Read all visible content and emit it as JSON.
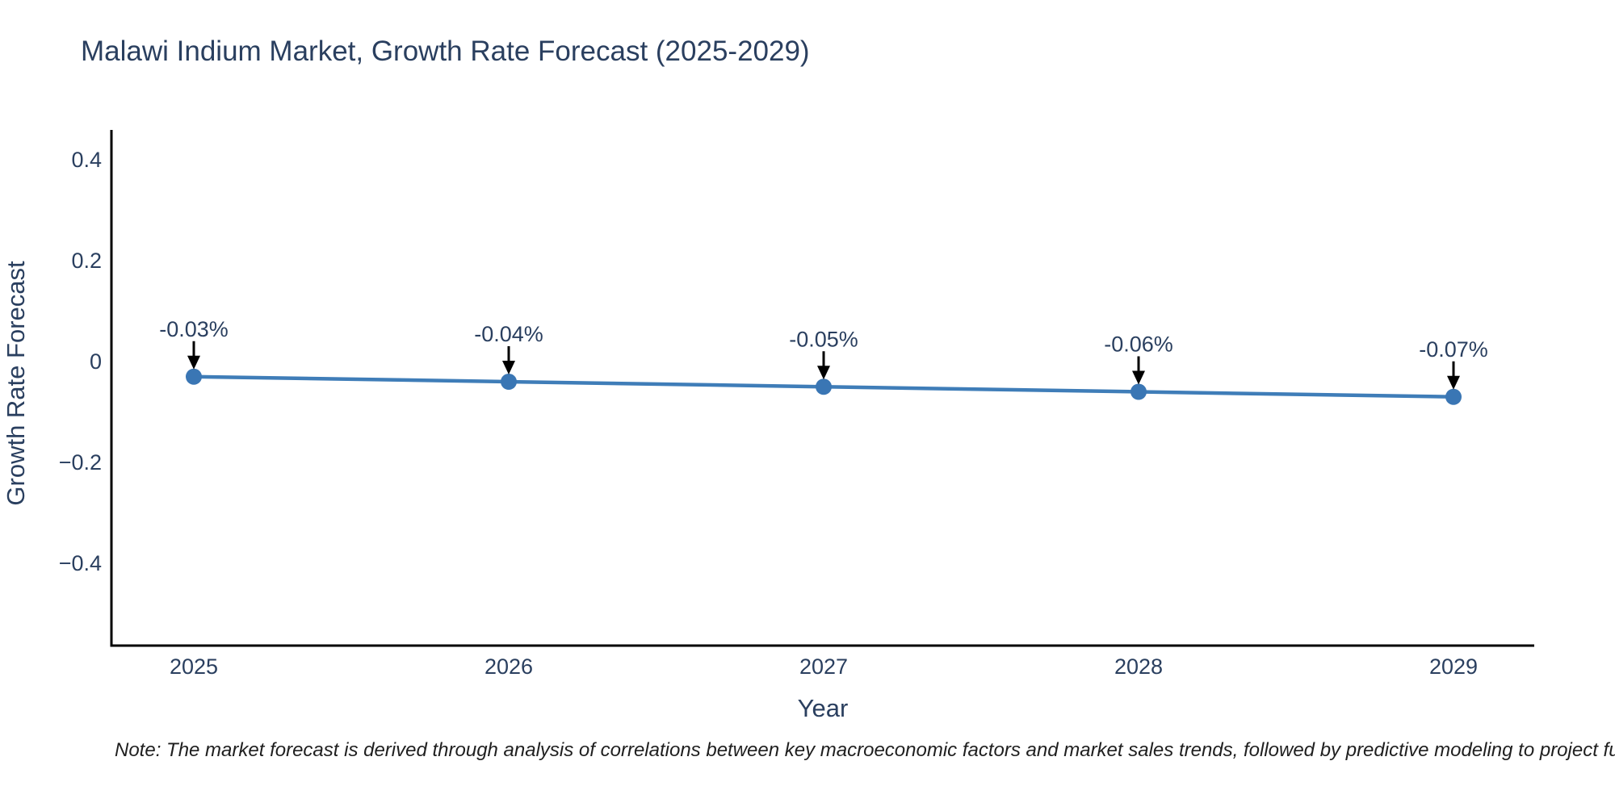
{
  "title": "Malawi Indium Market, Growth Rate Forecast (2025-2029)",
  "note": "Note: The market forecast is derived through analysis of correlations between key macroeconomic factors and market sales trends, followed by predictive modeling to project future sales.",
  "chart_data": {
    "type": "line",
    "title": "Malawi Indium Market, Growth Rate Forecast (2025-2029)",
    "xlabel": "Year",
    "ylabel": "Growth Rate Forecast",
    "categories": [
      "2025",
      "2026",
      "2027",
      "2028",
      "2029"
    ],
    "series": [
      {
        "name": "Growth Rate Forecast",
        "values": [
          -0.03,
          -0.04,
          -0.05,
          -0.06,
          -0.07
        ]
      }
    ],
    "annotations": [
      "-0.03%",
      "-0.04%",
      "-0.05%",
      "-0.06%",
      "-0.07%"
    ],
    "yticks": {
      "values": [
        0.4,
        0.2,
        0,
        -0.2,
        -0.4
      ],
      "labels": [
        "0.4",
        "0.2",
        "0",
        "−0.2",
        "−0.4"
      ]
    },
    "ylim": [
      -0.55,
      0.52
    ],
    "grid": false,
    "legend": "none",
    "colors": {
      "line": "#3f7db8",
      "marker": "#3a76b4",
      "arrow": "#000000",
      "text": "#2a3f5f",
      "axis": "#000000",
      "background": "#ffffff"
    }
  }
}
